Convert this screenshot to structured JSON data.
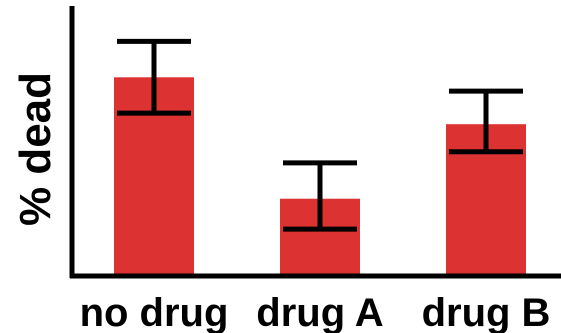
{
  "chart_data": {
    "type": "bar",
    "categories": [
      "no drug",
      "drug A",
      "drug B"
    ],
    "values": [
      72,
      28,
      55
    ],
    "error_low": [
      59,
      17,
      45
    ],
    "error_high": [
      85,
      41,
      67
    ],
    "xlabel": "",
    "ylabel": "% dead",
    "ylim": [
      0,
      100
    ],
    "grid": false,
    "y_ticks_shown": false,
    "bar_color": "#dc3232",
    "error_color": "#000000"
  }
}
